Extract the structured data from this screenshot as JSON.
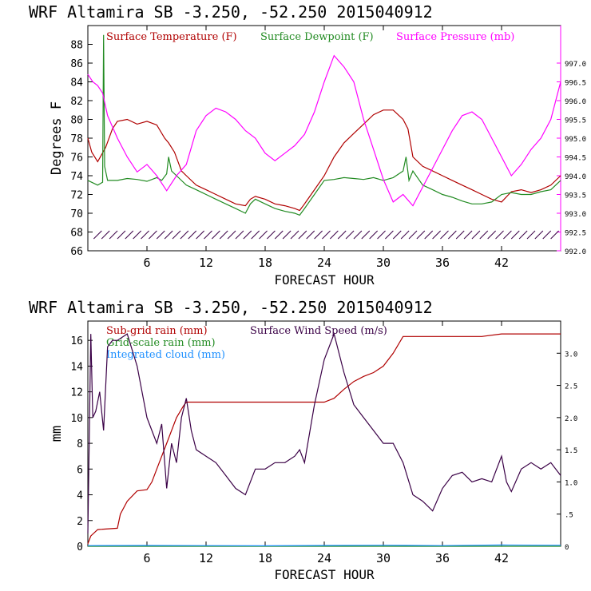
{
  "chart_data": [
    {
      "type": "line",
      "title": "WRF   Altamira   SB   -3.250, -52.250   2015040912",
      "xlabel": "FORECAST HOUR",
      "ylabel": "Degrees F",
      "xlim": [
        0,
        48
      ],
      "ylim": [
        66,
        90
      ],
      "y2lim": [
        992.0,
        998.0
      ],
      "xticks": [
        "6",
        "12",
        "18",
        "24",
        "30",
        "36",
        "42"
      ],
      "xtick_values": [
        6,
        12,
        18,
        24,
        30,
        36,
        42
      ],
      "yticks": [
        "66",
        "68",
        "70",
        "72",
        "74",
        "76",
        "78",
        "80",
        "82",
        "84",
        "86",
        "88"
      ],
      "ytick_values": [
        66,
        68,
        70,
        72,
        74,
        76,
        78,
        80,
        82,
        84,
        86,
        88
      ],
      "y2ticks": [
        "992.0",
        "992.5",
        "993.0",
        "993.5",
        "994.0",
        "994.5",
        "995.0",
        "995.5",
        "996.0",
        "996.5",
        "997.0"
      ],
      "y2tick_values": [
        992.0,
        992.5,
        993.0,
        993.5,
        994.0,
        994.5,
        995.0,
        995.5,
        996.0,
        996.5,
        997.0
      ],
      "legend": [
        {
          "label": "Surface Temperature (F)",
          "color": "#b00000"
        },
        {
          "label": "Surface Dewpoint (F)",
          "color": "#228b22"
        },
        {
          "label": "Surface Pressure (mb)",
          "color": "#ff00ff"
        }
      ],
      "series": [
        {
          "name": "Surface Temperature (F)",
          "axis": "left",
          "color": "#b00000",
          "x": [
            0,
            0.4,
            1,
            1.8,
            2.5,
            3,
            4,
            5,
            6,
            7,
            7.8,
            8.2,
            8.8,
            9.5,
            10,
            11,
            12,
            13,
            14,
            15,
            16,
            16.5,
            17,
            18,
            19,
            20,
            21,
            21.5,
            22,
            23,
            24,
            25,
            26,
            27,
            28,
            29,
            30,
            31,
            32,
            32.5,
            33,
            34,
            35,
            36,
            37,
            38,
            39,
            40,
            41,
            42,
            43,
            44,
            45,
            46,
            47,
            48
          ],
          "y": [
            78,
            76.5,
            75.5,
            77,
            79,
            79.8,
            80,
            79.5,
            79.8,
            79.4,
            78,
            77.5,
            76.5,
            74.5,
            74,
            73,
            72.5,
            72,
            71.5,
            71,
            70.8,
            71.5,
            71.8,
            71.5,
            71,
            70.8,
            70.5,
            70.3,
            71,
            72.5,
            74,
            76,
            77.5,
            78.5,
            79.5,
            80.5,
            81,
            81,
            80,
            79,
            76,
            75,
            74.5,
            74,
            73.5,
            73,
            72.5,
            72,
            71.5,
            71.2,
            72.3,
            72.5,
            72.2,
            72.5,
            73,
            74
          ]
        },
        {
          "name": "Surface Dewpoint (F)",
          "axis": "left",
          "color": "#228b22",
          "x": [
            0,
            1,
            1.5,
            1.6,
            1.7,
            2,
            3,
            4,
            5,
            6,
            7,
            7.5,
            8,
            8.2,
            8.5,
            9,
            10,
            11,
            12,
            13,
            14,
            15,
            16,
            16.5,
            17,
            18,
            19,
            20,
            21,
            21.5,
            22,
            23,
            24,
            25,
            26,
            27,
            28,
            29,
            30,
            31,
            32,
            32.3,
            32.6,
            33,
            34,
            35,
            36,
            37,
            38,
            39,
            40,
            41,
            42,
            43,
            44,
            45,
            46,
            47,
            48
          ],
          "y": [
            73.5,
            73,
            73.3,
            89,
            75,
            73.5,
            73.5,
            73.7,
            73.6,
            73.4,
            73.8,
            73.5,
            74.2,
            76,
            74.5,
            74,
            73,
            72.5,
            72,
            71.5,
            71,
            70.5,
            70,
            71,
            71.5,
            71,
            70.5,
            70.2,
            70,
            69.8,
            70.5,
            72,
            73.5,
            73.6,
            73.8,
            73.7,
            73.6,
            73.8,
            73.5,
            73.8,
            74.5,
            76,
            73.5,
            74.5,
            73,
            72.5,
            72,
            71.7,
            71.3,
            71,
            71,
            71.2,
            72,
            72.2,
            72,
            72,
            72.3,
            72.5,
            73.5
          ]
        },
        {
          "name": "Surface Pressure (mb)",
          "axis": "right",
          "color": "#ff00ff",
          "x": [
            0,
            0.5,
            1,
            1.5,
            2,
            3,
            4,
            5,
            6,
            7,
            7.5,
            8,
            8.5,
            9,
            10,
            11,
            12,
            13,
            14,
            15,
            16,
            17,
            18,
            19,
            20,
            21,
            22,
            23,
            24,
            25,
            26,
            27,
            28,
            29,
            30,
            31,
            32,
            33,
            34,
            35,
            36,
            37,
            38,
            39,
            40,
            41,
            42,
            43,
            44,
            45,
            46,
            47,
            48
          ],
          "y": [
            996.7,
            996.5,
            996.4,
            996.2,
            995.6,
            995.0,
            994.5,
            994.1,
            994.3,
            994.0,
            993.8,
            993.6,
            993.8,
            994.0,
            994.3,
            995.2,
            995.6,
            995.8,
            995.7,
            995.5,
            995.2,
            995.0,
            994.6,
            994.4,
            994.6,
            994.8,
            995.1,
            995.7,
            996.5,
            997.2,
            996.9,
            996.5,
            995.5,
            994.7,
            993.9,
            993.3,
            993.5,
            993.2,
            993.7,
            994.2,
            994.7,
            995.2,
            995.6,
            995.7,
            995.5,
            995.0,
            994.5,
            994.0,
            994.3,
            994.7,
            995.0,
            995.5,
            996.5
          ]
        }
      ],
      "wind_barbs": {
        "y": 67.7,
        "description": "wind barbs along surface"
      }
    },
    {
      "type": "line",
      "title": "WRF   Altamira   SB   -3.250, -52.250   2015040912",
      "xlabel": "FORECAST HOUR",
      "ylabel": "mm",
      "xlim": [
        0,
        48
      ],
      "ylim": [
        0,
        17.5
      ],
      "y2lim": [
        0,
        3.5
      ],
      "xticks": [
        "6",
        "12",
        "18",
        "24",
        "30",
        "36",
        "42"
      ],
      "xtick_values": [
        6,
        12,
        18,
        24,
        30,
        36,
        42
      ],
      "yticks": [
        "0",
        "2",
        "4",
        "6",
        "8",
        "10",
        "12",
        "14",
        "16"
      ],
      "ytick_values": [
        0,
        2,
        4,
        6,
        8,
        10,
        12,
        14,
        16
      ],
      "y2ticks": [
        "0",
        ".5",
        "1.0",
        "1.5",
        "2.0",
        "2.5",
        "3.0"
      ],
      "y2tick_values": [
        0,
        0.5,
        1.0,
        1.5,
        2.0,
        2.5,
        3.0
      ],
      "legend": [
        {
          "label": "Sub-grid rain (mm)",
          "color": "#b00000"
        },
        {
          "label": "Surface Wind Speed (m/s)",
          "color": "#3a0046"
        },
        {
          "label": "Grid-scale rain (mm)",
          "color": "#228b22"
        },
        {
          "label": "Integrated cloud (mm)",
          "color": "#1e90ff"
        }
      ],
      "series": [
        {
          "name": "Sub-grid rain (mm)",
          "axis": "left",
          "color": "#b00000",
          "x": [
            0,
            0.3,
            1,
            3,
            3.3,
            4,
            5,
            6,
            6.5,
            7,
            8,
            9,
            9.7,
            10,
            12,
            24,
            25,
            26,
            27,
            28,
            29,
            30,
            31,
            32,
            40,
            42,
            48
          ],
          "y": [
            0.2,
            0.8,
            1.3,
            1.4,
            2.5,
            3.5,
            4.3,
            4.4,
            5,
            6,
            8,
            10,
            10.9,
            11.2,
            11.2,
            11.2,
            11.5,
            12.2,
            12.8,
            13.2,
            13.5,
            14,
            15,
            16.3,
            16.3,
            16.5,
            16.5
          ]
        },
        {
          "name": "Surface Wind Speed (m/s)",
          "axis": "right",
          "color": "#3a0046",
          "x": [
            0,
            0.3,
            0.5,
            0.8,
            1.2,
            1.6,
            2,
            2.5,
            3,
            4,
            5,
            6,
            7,
            7.5,
            8,
            8.5,
            9,
            9.5,
            10,
            10.5,
            11,
            12,
            13,
            14,
            15,
            16,
            17,
            18,
            19,
            20,
            21,
            21.5,
            22,
            23,
            24,
            25,
            26,
            27,
            28,
            29,
            30,
            31,
            32,
            33,
            34,
            35,
            36,
            37,
            38,
            39,
            40,
            41,
            42,
            42.5,
            43,
            44,
            45,
            46,
            47,
            48
          ],
          "y": [
            0.2,
            3.3,
            2.0,
            2.1,
            2.4,
            1.8,
            3.1,
            3.2,
            3.2,
            3.3,
            2.8,
            2.0,
            1.6,
            1.9,
            0.9,
            1.6,
            1.3,
            2.0,
            2.3,
            1.8,
            1.5,
            1.4,
            1.3,
            1.1,
            0.9,
            0.8,
            1.2,
            1.2,
            1.3,
            1.3,
            1.4,
            1.5,
            1.3,
            2.2,
            2.9,
            3.3,
            2.7,
            2.2,
            2.0,
            1.8,
            1.6,
            1.6,
            1.3,
            0.8,
            0.7,
            0.55,
            0.9,
            1.1,
            1.15,
            1.0,
            1.05,
            1.0,
            1.4,
            1.0,
            0.85,
            1.2,
            1.3,
            1.2,
            1.3,
            1.1
          ]
        },
        {
          "name": "Grid-scale rain (mm)",
          "axis": "left",
          "color": "#228b22",
          "x": [
            0,
            48
          ],
          "y": [
            0,
            0
          ]
        },
        {
          "name": "Integrated cloud (mm)",
          "axis": "left",
          "color": "#1e90ff",
          "x": [
            0,
            6,
            12,
            18,
            24,
            30,
            36,
            42,
            48
          ],
          "y": [
            0.05,
            0.06,
            0.05,
            0.04,
            0.06,
            0.08,
            0.05,
            0.1,
            0.08
          ]
        }
      ]
    }
  ]
}
